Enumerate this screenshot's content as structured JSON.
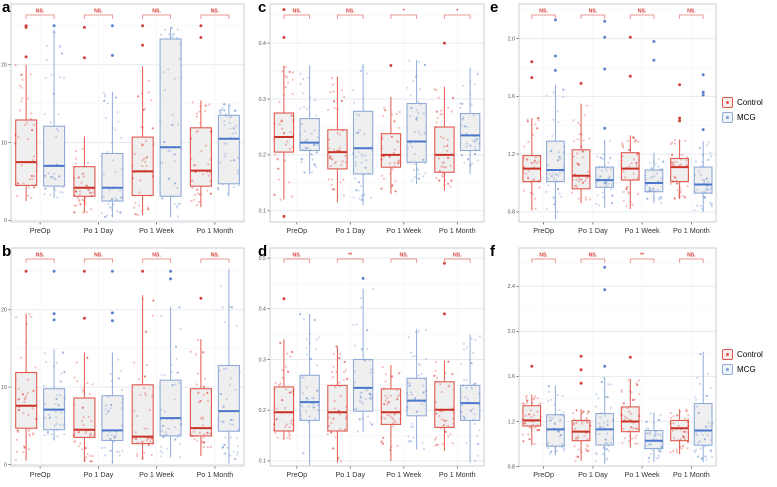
{
  "figure": {
    "legend": {
      "items": [
        {
          "label": "Control",
          "color": "#E2574D"
        },
        {
          "label": "MCG",
          "color": "#7C9FD6"
        }
      ]
    }
  },
  "colors": {
    "control_stroke": "#E2574D",
    "control_median": "#CB3227",
    "mcg_stroke": "#8FABD8",
    "mcg_median": "#4A77C9",
    "box_fill": "#EDEDED",
    "bracket": "#EA9A92",
    "significance_text": "#D9423B",
    "gridline_major": "#E6EAEF",
    "panel_border": "#C9CDD2"
  },
  "chart_data": [
    {
      "panel_label": "a",
      "type": "box",
      "categories": [
        "PreOp",
        "Po 1 Day",
        "Po 1 Week",
        "Po 1 Month"
      ],
      "significance": [
        "NS.",
        "NS.",
        "NS.",
        "NS."
      ],
      "yticks": [
        0,
        10,
        20
      ],
      "ytick_labels": [
        "0",
        "10",
        "20"
      ],
      "ylim": [
        -0.2,
        27.8
      ],
      "n_points_per_group": 40,
      "series": [
        {
          "name": "Control",
          "color": "#E2574D",
          "point_color": "#E2574D",
          "median_color": "#CB3227",
          "boxes": [
            {
              "whislo": 2.5,
              "q1": 4.5,
              "med": 7.5,
              "q3": 12.9,
              "whishi": 20.0,
              "fliers": [
                25,
                24.8,
                21
              ]
            },
            {
              "whislo": 1.0,
              "q1": 3.1,
              "med": 4.2,
              "q3": 6.9,
              "whishi": 10.8,
              "fliers": [
                24.8,
                20.9
              ]
            },
            {
              "whislo": 0.7,
              "q1": 3.2,
              "med": 6.3,
              "q3": 10.7,
              "whishi": 19.8,
              "fliers": [
                25,
                22.5
              ]
            },
            {
              "whislo": 1.7,
              "q1": 4.4,
              "med": 6.4,
              "q3": 11.9,
              "whishi": 15.4,
              "fliers": [
                25,
                23.5
              ]
            }
          ]
        },
        {
          "name": "MCG",
          "color": "#8FABD8",
          "point_color": "#7C9FD6",
          "median_color": "#4A77C9",
          "boxes": [
            {
              "whislo": 2.9,
              "q1": 4.4,
              "med": 7.0,
              "q3": 12.1,
              "whishi": 24.5,
              "fliers": [
                25
              ]
            },
            {
              "whislo": 0.4,
              "q1": 2.5,
              "med": 4.2,
              "q3": 8.6,
              "whishi": 16.5,
              "fliers": [
                25,
                21.2
              ]
            },
            {
              "whislo": 0.4,
              "q1": 3.1,
              "med": 9.4,
              "q3": 23.3,
              "whishi": 24.8,
              "fliers": []
            },
            {
              "whislo": 3.1,
              "q1": 4.7,
              "med": 10.5,
              "q3": 13.5,
              "whishi": 15.0,
              "fliers": []
            }
          ]
        }
      ]
    },
    {
      "panel_label": "b",
      "type": "box",
      "categories": [
        "PreOp",
        "Po 1 Day",
        "Po 1 Week",
        "Po 1 Month"
      ],
      "significance": [
        "NS.",
        "NS.",
        "NS.",
        "NS."
      ],
      "yticks": [
        0,
        10,
        20
      ],
      "ytick_labels": [
        "0",
        "10",
        "20"
      ],
      "ylim": [
        -0.2,
        28.0
      ],
      "n_points_per_group": 40,
      "series": [
        {
          "name": "Control",
          "color": "#E2574D",
          "point_color": "#E2574D",
          "median_color": "#CB3227",
          "boxes": [
            {
              "whislo": 0.5,
              "q1": 4.7,
              "med": 7.6,
              "q3": 11.9,
              "whishi": 19.5,
              "fliers": [
                25
              ]
            },
            {
              "whislo": 0.3,
              "q1": 3.5,
              "med": 4.5,
              "q3": 8.6,
              "whishi": 14.5,
              "fliers": [
                25,
                18.9
              ]
            },
            {
              "whislo": 0.7,
              "q1": 2.7,
              "med": 3.6,
              "q3": 10.3,
              "whishi": 21.9,
              "fliers": [
                25
              ]
            },
            {
              "whislo": 1.1,
              "q1": 3.7,
              "med": 4.7,
              "q3": 9.8,
              "whishi": 16.2,
              "fliers": [
                21.5
              ]
            }
          ]
        },
        {
          "name": "MCG",
          "color": "#8FABD8",
          "point_color": "#7C9FD6",
          "median_color": "#4A77C9",
          "boxes": [
            {
              "whislo": 3.1,
              "q1": 4.5,
              "med": 7.1,
              "q3": 9.8,
              "whishi": 14.9,
              "fliers": [
                25,
                19.5,
                18.7
              ]
            },
            {
              "whislo": 0.1,
              "q1": 3.1,
              "med": 4.4,
              "q3": 8.9,
              "whishi": 14.5,
              "fliers": [
                25,
                19.6,
                18.6
              ]
            },
            {
              "whislo": 0.9,
              "q1": 3.7,
              "med": 6.0,
              "q3": 10.9,
              "whishi": 20.4,
              "fliers": [
                25,
                24
              ]
            },
            {
              "whislo": 0.1,
              "q1": 4.3,
              "med": 6.9,
              "q3": 12.8,
              "whishi": 25.3,
              "fliers": []
            }
          ]
        }
      ]
    },
    {
      "panel_label": "c",
      "type": "box",
      "categories": [
        "PreOp",
        "Po 1 Day",
        "Po 1 Week",
        "Po 1 Month"
      ],
      "significance": [
        "NS.",
        "NS.",
        "*",
        "*"
      ],
      "yticks": [
        0.1,
        0.2,
        0.3,
        0.4
      ],
      "ytick_labels": [
        "0.1",
        "0.2",
        "0.3",
        "0.4"
      ],
      "ylim": [
        0.08,
        0.47
      ],
      "n_points_per_group": 40,
      "series": [
        {
          "name": "Control",
          "color": "#E2574D",
          "point_color": "#E2574D",
          "median_color": "#CB3227",
          "boxes": [
            {
              "whislo": 0.12,
              "q1": 0.205,
              "med": 0.232,
              "q3": 0.275,
              "whishi": 0.36,
              "fliers": [
                0.46,
                0.41,
                0.09
              ]
            },
            {
              "whislo": 0.115,
              "q1": 0.175,
              "med": 0.205,
              "q3": 0.245,
              "whishi": 0.34,
              "fliers": []
            },
            {
              "whislo": 0.13,
              "q1": 0.178,
              "med": 0.2,
              "q3": 0.238,
              "whishi": 0.304,
              "fliers": [
                0.36
              ]
            },
            {
              "whislo": 0.136,
              "q1": 0.169,
              "med": 0.2,
              "q3": 0.25,
              "whishi": 0.322,
              "fliers": [
                0.4
              ]
            }
          ]
        },
        {
          "name": "MCG",
          "color": "#8FABD8",
          "point_color": "#7C9FD6",
          "median_color": "#4A77C9",
          "boxes": [
            {
              "whislo": 0.166,
              "q1": 0.208,
              "med": 0.222,
              "q3": 0.265,
              "whishi": 0.36,
              "fliers": []
            },
            {
              "whislo": 0.11,
              "q1": 0.166,
              "med": 0.212,
              "q3": 0.278,
              "whishi": 0.363,
              "fliers": []
            },
            {
              "whislo": 0.148,
              "q1": 0.187,
              "med": 0.224,
              "q3": 0.292,
              "whishi": 0.37,
              "fliers": []
            },
            {
              "whislo": 0.166,
              "q1": 0.208,
              "med": 0.235,
              "q3": 0.274,
              "whishi": 0.354,
              "fliers": []
            }
          ]
        }
      ]
    },
    {
      "panel_label": "d",
      "type": "box",
      "categories": [
        "PreOp",
        "Po 1 Day",
        "Po 1 Week",
        "Po 1 Month"
      ],
      "significance": [
        "NS.",
        "**",
        "NS.",
        "NS."
      ],
      "yticks": [
        0.1,
        0.2,
        0.3,
        0.4,
        0.5
      ],
      "ytick_labels": [
        "0.1",
        "0.2",
        "0.3",
        "0.4",
        "0.5"
      ],
      "ylim": [
        0.09,
        0.52
      ],
      "n_points_per_group": 40,
      "series": [
        {
          "name": "Control",
          "color": "#E2574D",
          "point_color": "#E2574D",
          "median_color": "#CB3227",
          "boxes": [
            {
              "whislo": 0.143,
              "q1": 0.159,
              "med": 0.196,
              "q3": 0.246,
              "whishi": 0.34,
              "fliers": [
                0.42
              ]
            },
            {
              "whislo": 0.097,
              "q1": 0.159,
              "med": 0.196,
              "q3": 0.249,
              "whishi": 0.326,
              "fliers": []
            },
            {
              "whislo": 0.1,
              "q1": 0.172,
              "med": 0.196,
              "q3": 0.242,
              "whishi": 0.289,
              "fliers": []
            },
            {
              "whislo": 0.12,
              "q1": 0.166,
              "med": 0.201,
              "q3": 0.256,
              "whishi": 0.298,
              "fliers": [
                0.49,
                0.39
              ]
            }
          ]
        },
        {
          "name": "MCG",
          "color": "#8FABD8",
          "point_color": "#7C9FD6",
          "median_color": "#4A77C9",
          "boxes": [
            {
              "whislo": 0.09,
              "q1": 0.18,
              "med": 0.216,
              "q3": 0.269,
              "whishi": 0.39,
              "fliers": []
            },
            {
              "whislo": 0.157,
              "q1": 0.198,
              "med": 0.244,
              "q3": 0.3,
              "whishi": 0.44,
              "fliers": [
                0.46
              ]
            },
            {
              "whislo": 0.123,
              "q1": 0.189,
              "med": 0.219,
              "q3": 0.263,
              "whishi": 0.36,
              "fliers": []
            },
            {
              "whislo": 0.097,
              "q1": 0.18,
              "med": 0.214,
              "q3": 0.249,
              "whishi": 0.349,
              "fliers": []
            }
          ]
        }
      ]
    },
    {
      "panel_label": "e",
      "type": "box",
      "categories": [
        "PreOp",
        "Po 1 Day",
        "Po 1 Week",
        "Po 1 Month"
      ],
      "significance": [
        "NS.",
        "NS.",
        "NS.",
        "NS."
      ],
      "yticks": [
        0.8,
        1.2,
        1.6,
        2.0
      ],
      "ytick_labels": [
        "0.8",
        "1.2",
        "1.6",
        "2.0"
      ],
      "ylim": [
        0.73,
        2.24
      ],
      "n_points_per_group": 40,
      "series": [
        {
          "name": "Control",
          "color": "#E2574D",
          "point_color": "#E2574D",
          "median_color": "#CB3227",
          "boxes": [
            {
              "whislo": 0.81,
              "q1": 1.01,
              "med": 1.1,
              "q3": 1.19,
              "whishi": 1.45,
              "fliers": [
                1.84,
                1.73
              ]
            },
            {
              "whislo": 0.86,
              "q1": 0.96,
              "med": 1.05,
              "q3": 1.23,
              "whishi": 1.55,
              "fliers": [
                1.69
              ]
            },
            {
              "whislo": 0.82,
              "q1": 1.02,
              "med": 1.1,
              "q3": 1.21,
              "whishi": 1.33,
              "fliers": [
                2.01,
                1.74
              ]
            },
            {
              "whislo": 0.89,
              "q1": 1.01,
              "med": 1.11,
              "q3": 1.17,
              "whishi": 1.3,
              "fliers": [
                1.68,
                1.45,
                1.43
              ]
            }
          ]
        },
        {
          "name": "MCG",
          "color": "#8FABD8",
          "point_color": "#7C9FD6",
          "median_color": "#4A77C9",
          "boxes": [
            {
              "whislo": 0.75,
              "q1": 1.01,
              "med": 1.09,
              "q3": 1.29,
              "whishi": 1.68,
              "fliers": [
                2.13,
                1.88,
                1.78
              ]
            },
            {
              "whislo": 0.83,
              "q1": 0.97,
              "med": 1.02,
              "q3": 1.11,
              "whishi": 1.3,
              "fliers": [
                2.12,
                2.01,
                1.79,
                1.38
              ]
            },
            {
              "whislo": 0.86,
              "q1": 0.94,
              "med": 1.0,
              "q3": 1.09,
              "whishi": 1.21,
              "fliers": [
                1.98,
                1.85
              ]
            },
            {
              "whislo": 0.8,
              "q1": 0.93,
              "med": 0.99,
              "q3": 1.11,
              "whishi": 1.29,
              "fliers": [
                1.75,
                1.63,
                1.61,
                1.37
              ]
            }
          ]
        }
      ]
    },
    {
      "panel_label": "f",
      "type": "box",
      "categories": [
        "PreOp",
        "Po 1 Day",
        "Po 1 Week",
        "Po 1 Month"
      ],
      "significance": [
        "NS.",
        "NS.",
        "**",
        "NS."
      ],
      "yticks": [
        0.8,
        1.2,
        1.6,
        2.0,
        2.4
      ],
      "ytick_labels": [
        "0.8",
        "1.2",
        "1.6",
        "2.0",
        "2.4"
      ],
      "ylim": [
        0.805,
        2.74
      ],
      "n_points_per_group": 40,
      "series": [
        {
          "name": "Control",
          "color": "#E2574D",
          "point_color": "#E2574D",
          "median_color": "#CB3227",
          "boxes": [
            {
              "whislo": 0.99,
              "q1": 1.16,
              "med": 1.21,
              "q3": 1.34,
              "whishi": 1.44,
              "fliers": [
                1.69
              ]
            },
            {
              "whislo": 0.85,
              "q1": 1.03,
              "med": 1.11,
              "q3": 1.21,
              "whishi": 1.31,
              "fliers": [
                1.78,
                1.66,
                1.54
              ]
            },
            {
              "whislo": 0.97,
              "q1": 1.11,
              "med": 1.2,
              "q3": 1.33,
              "whishi": 1.58,
              "fliers": [
                1.77
              ]
            },
            {
              "whislo": 0.91,
              "q1": 1.03,
              "med": 1.14,
              "q3": 1.21,
              "whishi": 1.31,
              "fliers": []
            }
          ]
        },
        {
          "name": "MCG",
          "color": "#8FABD8",
          "point_color": "#7C9FD6",
          "median_color": "#4A77C9",
          "boxes": [
            {
              "whislo": 0.9,
              "q1": 0.98,
              "med": 1.13,
              "q3": 1.26,
              "whishi": 1.52,
              "fliers": []
            },
            {
              "whislo": 0.82,
              "q1": 0.99,
              "med": 1.13,
              "q3": 1.27,
              "whishi": 1.59,
              "fliers": [
                2.57,
                2.37,
                1.69
              ]
            },
            {
              "whislo": 0.84,
              "q1": 0.96,
              "med": 1.03,
              "q3": 1.12,
              "whishi": 1.28,
              "fliers": []
            },
            {
              "whislo": 0.84,
              "q1": 0.99,
              "med": 1.12,
              "q3": 1.36,
              "whishi": 1.82,
              "fliers": []
            }
          ]
        }
      ]
    }
  ]
}
